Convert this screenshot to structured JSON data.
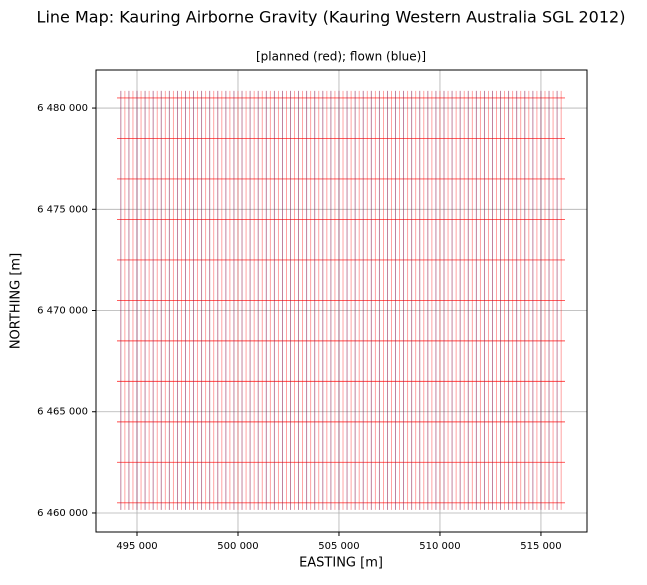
{
  "chart_data": {
    "type": "linemap",
    "title": "Line Map: Kauring Airborne Gravity (Kauring Western Australia SGL 2012)",
    "subtitle": "[planned (red); flown (blue)]",
    "xlabel": "EASTING [m]",
    "ylabel": "NORTHING [m]",
    "xlim": [
      492970,
      517280
    ],
    "ylim": [
      6459060,
      6481880
    ],
    "xticks": [
      {
        "value": 495000,
        "label": "495 000"
      },
      {
        "value": 500000,
        "label": "500 000"
      },
      {
        "value": 505000,
        "label": "505 000"
      },
      {
        "value": 510000,
        "label": "510 000"
      },
      {
        "value": 515000,
        "label": "515 000"
      }
    ],
    "yticks": [
      {
        "value": 6460000,
        "label": "6 460 000"
      },
      {
        "value": 6465000,
        "label": "6 465 000"
      },
      {
        "value": 6470000,
        "label": "6 470 000"
      },
      {
        "value": 6475000,
        "label": "6 475 000"
      },
      {
        "value": 6480000,
        "label": "6 480 000"
      }
    ],
    "grid": true,
    "series": [
      {
        "color": "#ff0000",
        "opacity": 0.45,
        "traverse_x": [
          494200,
          494400,
          494600,
          494800,
          495000,
          495200,
          495400,
          495600,
          495800,
          496000,
          496200,
          496400,
          496600,
          496800,
          497000,
          497200,
          497400,
          497600,
          497800,
          498000,
          498200,
          498400,
          498600,
          498800,
          499000,
          499200,
          499400,
          499600,
          499800,
          500000,
          500200,
          500400,
          500600,
          500800,
          501000,
          501200,
          501400,
          501600,
          501800,
          502000,
          502200,
          502400,
          502600,
          502800,
          503000,
          503200,
          503400,
          503600,
          503800,
          504000,
          504200,
          504400,
          504600,
          504800,
          505000,
          505200,
          505400,
          505600,
          505800,
          506000,
          506200,
          506400,
          506600,
          506800,
          507000,
          507200,
          507400,
          507600,
          507800,
          508000,
          508200,
          508400,
          508600,
          508800,
          509000,
          509200,
          509400,
          509600,
          509800,
          510000,
          510200,
          510400,
          510600,
          510800,
          511000,
          511200,
          511400,
          511600,
          511800,
          512000,
          512200,
          512400,
          512600,
          512800,
          513000,
          513200,
          513400,
          513600,
          513800,
          514000,
          514200,
          514400,
          514600,
          514800,
          515000,
          515200,
          515400,
          515600,
          515800,
          516000
        ],
        "traverse_yrange": [
          6460150,
          6480850
        ],
        "tie_y": [
          6460500,
          6462500,
          6464500,
          6466500,
          6468500,
          6470500,
          6472500,
          6474500,
          6476500,
          6478500,
          6480500
        ],
        "tie_xrange": [
          494010,
          516190
        ]
      },
      {
        "color": "#1f2f8f",
        "opacity": 0.35,
        "traverse_x": [
          494200,
          494600,
          495000,
          495400,
          495800,
          496200,
          496600,
          497000,
          497400,
          497800,
          498200,
          498600,
          499000,
          499400,
          499800,
          500200,
          500600,
          501000,
          501400,
          501800,
          502200,
          502600,
          503000,
          503400,
          503800,
          504200,
          504600,
          505000,
          505400,
          505800,
          506200,
          506600,
          507000,
          507400,
          507800,
          508200,
          508600,
          509000,
          509400,
          509800,
          510200,
          510600,
          511000,
          511400,
          511800,
          512200,
          512600,
          513000,
          513400,
          513800,
          514200,
          514600,
          515000,
          515400,
          515800
        ],
        "traverse_yrange": [
          6460150,
          6480850
        ]
      }
    ]
  }
}
